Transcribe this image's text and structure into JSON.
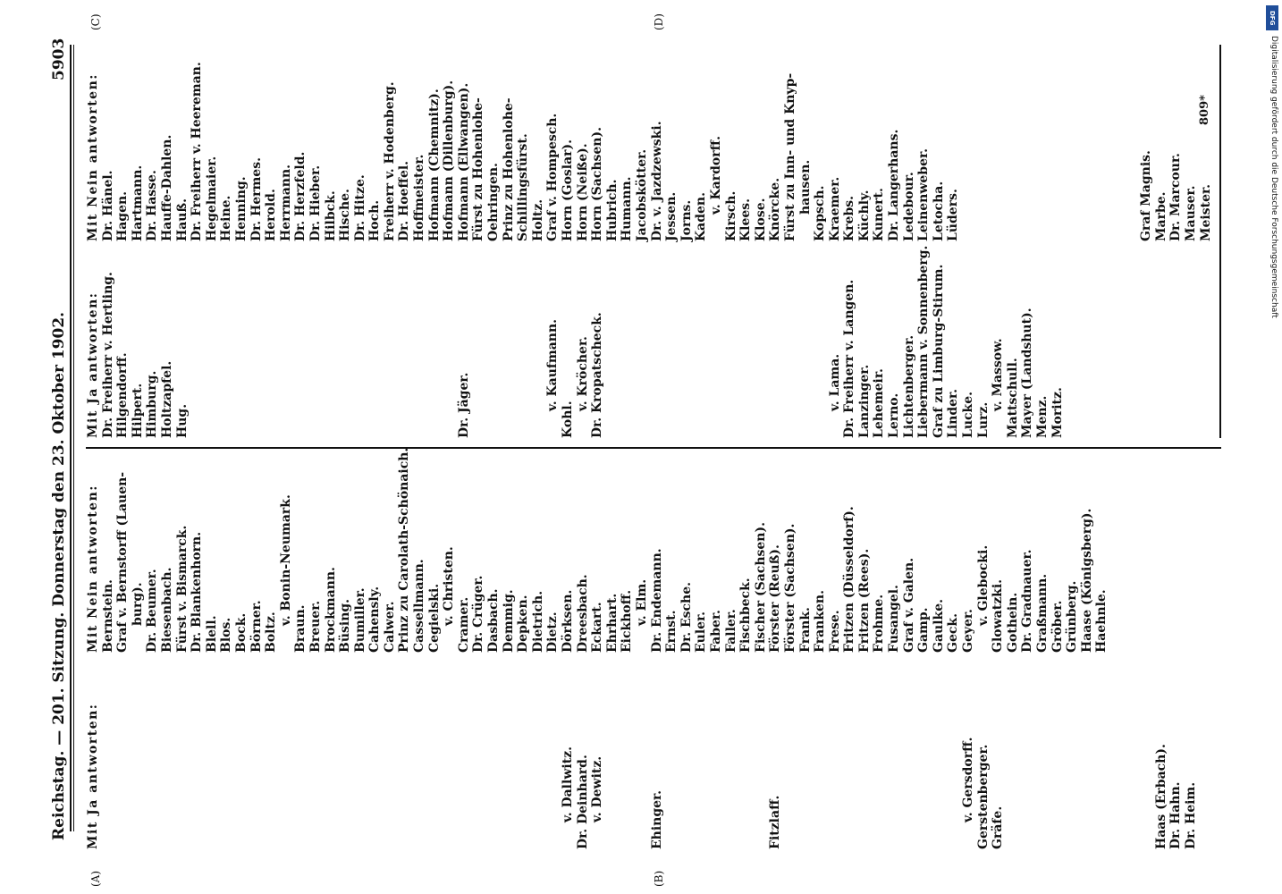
{
  "header": {
    "left": "Reichstag. — 201. Sitzung. Donnerstag den 23. Oktober 1902.",
    "page_number": "5903"
  },
  "margin_letters": [
    "(A)",
    "(B)",
    "(C)",
    "(D)"
  ],
  "columns": {
    "ja_left": {
      "heading": "Mit Ja antworten:",
      "entries": [
        "",
        "",
        "",
        "",
        "",
        "",
        "",
        "",
        "",
        "",
        "",
        "",
        "",
        "",
        "",
        "",
        "",
        "",
        "",
        "",
        "",
        "",
        "",
        "",
        "",
        "",
        "",
        "",
        "",
        "",
        "",
        "v. Dallwitz.",
        "Dr. Deinhard.",
        "v. Dewitz.",
        "",
        "",
        "",
        "Ehinger.",
        "",
        "",
        "",
        "",
        "",
        "",
        "",
        "Fitzlaff.",
        "",
        "",
        "",
        "",
        "",
        "",
        "",
        "",
        "",
        "",
        "",
        "",
        "v. Gersdorff.",
        "Gerstenberger.",
        "Gräfe.",
        "",
        "",
        "",
        "",
        "",
        "",
        "",
        "",
        "",
        "",
        "Haas (Erbach).",
        "Dr. Hahn.",
        "Dr. Heim."
      ]
    },
    "nein_left": {
      "heading": "Mit Nein antworten:",
      "entries": [
        "Bernstein.",
        "Graf v. Bernstorff (Lauen-",
        "burg).",
        "Dr. Beumer.",
        "Biesenbach.",
        "Fürst v. Bismarck.",
        "Dr. Blankenhorn.",
        "Blell.",
        "Blos.",
        "Bock.",
        "Börner.",
        "Boltz.",
        "v. Bonin-Neumark.",
        "Braun.",
        "Breuer.",
        "Brockmann.",
        "Büsing.",
        "Bumiller.",
        "Cahensly.",
        "Calwer.",
        "Prinz zu Carolath-Schönaich.",
        "Cassellmann.",
        "Cegielski.",
        "v. Christen.",
        "Cramer.",
        "Dr. Crüger.",
        "Dasbach.",
        "Demmig.",
        "Depken.",
        "Dietrich.",
        "Dietz.",
        "Dörksen.",
        "Dreesbach.",
        "Eckart.",
        "Ehrhart.",
        "Eickhoff.",
        "v. Elm.",
        "Dr. Endemann.",
        "Ernst.",
        "Dr. Esche.",
        "Euler.",
        "Faber.",
        "Faller.",
        "Fischbeck.",
        "Fischer (Sachsen).",
        "Förster (Reuß).",
        "Förster (Sachsen).",
        "Frank.",
        "Franken.",
        "Frese.",
        "Fritzen (Düsseldorf).",
        "Fritzen (Rees).",
        "Frohme.",
        "Fusangel.",
        "Graf v. Galen.",
        "Gamp.",
        "Gaulke.",
        "Geck.",
        "Geyer.",
        "v. Glebocki.",
        "Glowatzki.",
        "Gothein.",
        "Dr. Gradnauer.",
        "Graßmann.",
        "Gröber.",
        "Grünberg.",
        "Haase (Königsberg).",
        "Haehnle."
      ]
    },
    "ja_right": {
      "heading": "Mit Ja antworten:",
      "entries": [
        "Dr. Freiherr v. Hertling.",
        "Hilgendorff.",
        "Hilpert.",
        "Himburg.",
        "Holtzapfel.",
        "Hug.",
        "",
        "",
        "",
        "",
        "",
        "",
        "",
        "",
        "",
        "",
        "",
        "",
        "",
        "",
        "",
        "",
        "",
        "",
        "Dr. Jäger.",
        "",
        "",
        "",
        "",
        "",
        "v. Kaufmann.",
        "Kohl.",
        "v. Kröcher.",
        "Dr. Kropatscheck.",
        "",
        "",
        "",
        "",
        "",
        "",
        "",
        "",
        "",
        "",
        "",
        "",
        "",
        "",
        "",
        "v. Lama.",
        "Dr. Freiherr v. Langen.",
        "Lanzinger.",
        "Lehemeir.",
        "Lerno.",
        "Lichtenberger.",
        "Liebermann v. Sonnenberg.",
        "Graf zu Limburg-Stirum.",
        "Linder.",
        "Lucke.",
        "Lurz.",
        "v. Massow.",
        "Mattschull.",
        "Mayer (Landshut).",
        "Menz.",
        "Moritz."
      ]
    },
    "nein_right": {
      "heading": "Mit Nein antworten:",
      "entries": [
        "Dr. Hänel.",
        "Hagen.",
        "Hartmann.",
        "Dr. Hasse.",
        "Hauffe-Dahlen.",
        "Hauß.",
        "Dr. Freiherr v. Heereman.",
        "Hegelmaier.",
        "Heine.",
        "Henning.",
        "Dr. Hermes.",
        "Herold.",
        "Herrmann.",
        "Dr. Herzfeld.",
        "Dr. Hieber.",
        "Hilbck.",
        "Hische.",
        "Dr. Hitze.",
        "Hoch.",
        "Freiherr v. Hodenberg.",
        "Dr. Hoeffel.",
        "Hoffmeister.",
        "Hofmann (Chemnitz).",
        "Hofmann (Dillenburg).",
        "Hofmann (Ellwangen).",
        "Fürst zu Hohenlohe-",
        "Oehringen.",
        "Prinz zu Hohenlohe-",
        "Schillingsfürst.",
        "Holtz.",
        "Graf v. Hompesch.",
        "Horn (Goslar).",
        "Horn (Neiße).",
        "Horn (Sachsen).",
        "Hubrich.",
        "Humann.",
        "Jacobskötter.",
        "Dr. v. Jazdzewski.",
        "Jessen.",
        "Jorns.",
        "Kaden.",
        "v. Kardorff.",
        "Kirsch.",
        "Klees.",
        "Klose.",
        "Knörcke.",
        "Fürst zu Inn- und Knyp-",
        "hausen.",
        "Kopsch.",
        "Kraemer.",
        "Krebs.",
        "Küchly.",
        "Kunert.",
        "Dr. Langerhans.",
        "Ledebour.",
        "Leinenweber.",
        "Letocha.",
        "Lüders.",
        "",
        "",
        "",
        "",
        "",
        "",
        "",
        "",
        "",
        "",
        "",
        "",
        "Graf Magnis.",
        "Marbe.",
        "Dr. Marcour.",
        "Mauser.",
        "Meister."
      ]
    }
  },
  "footer_signature": "809*",
  "dfg": {
    "badge": "DFG",
    "credit": "Digitalisierung gefördert durch die Deutsche Forschungsgemeinschaft"
  }
}
